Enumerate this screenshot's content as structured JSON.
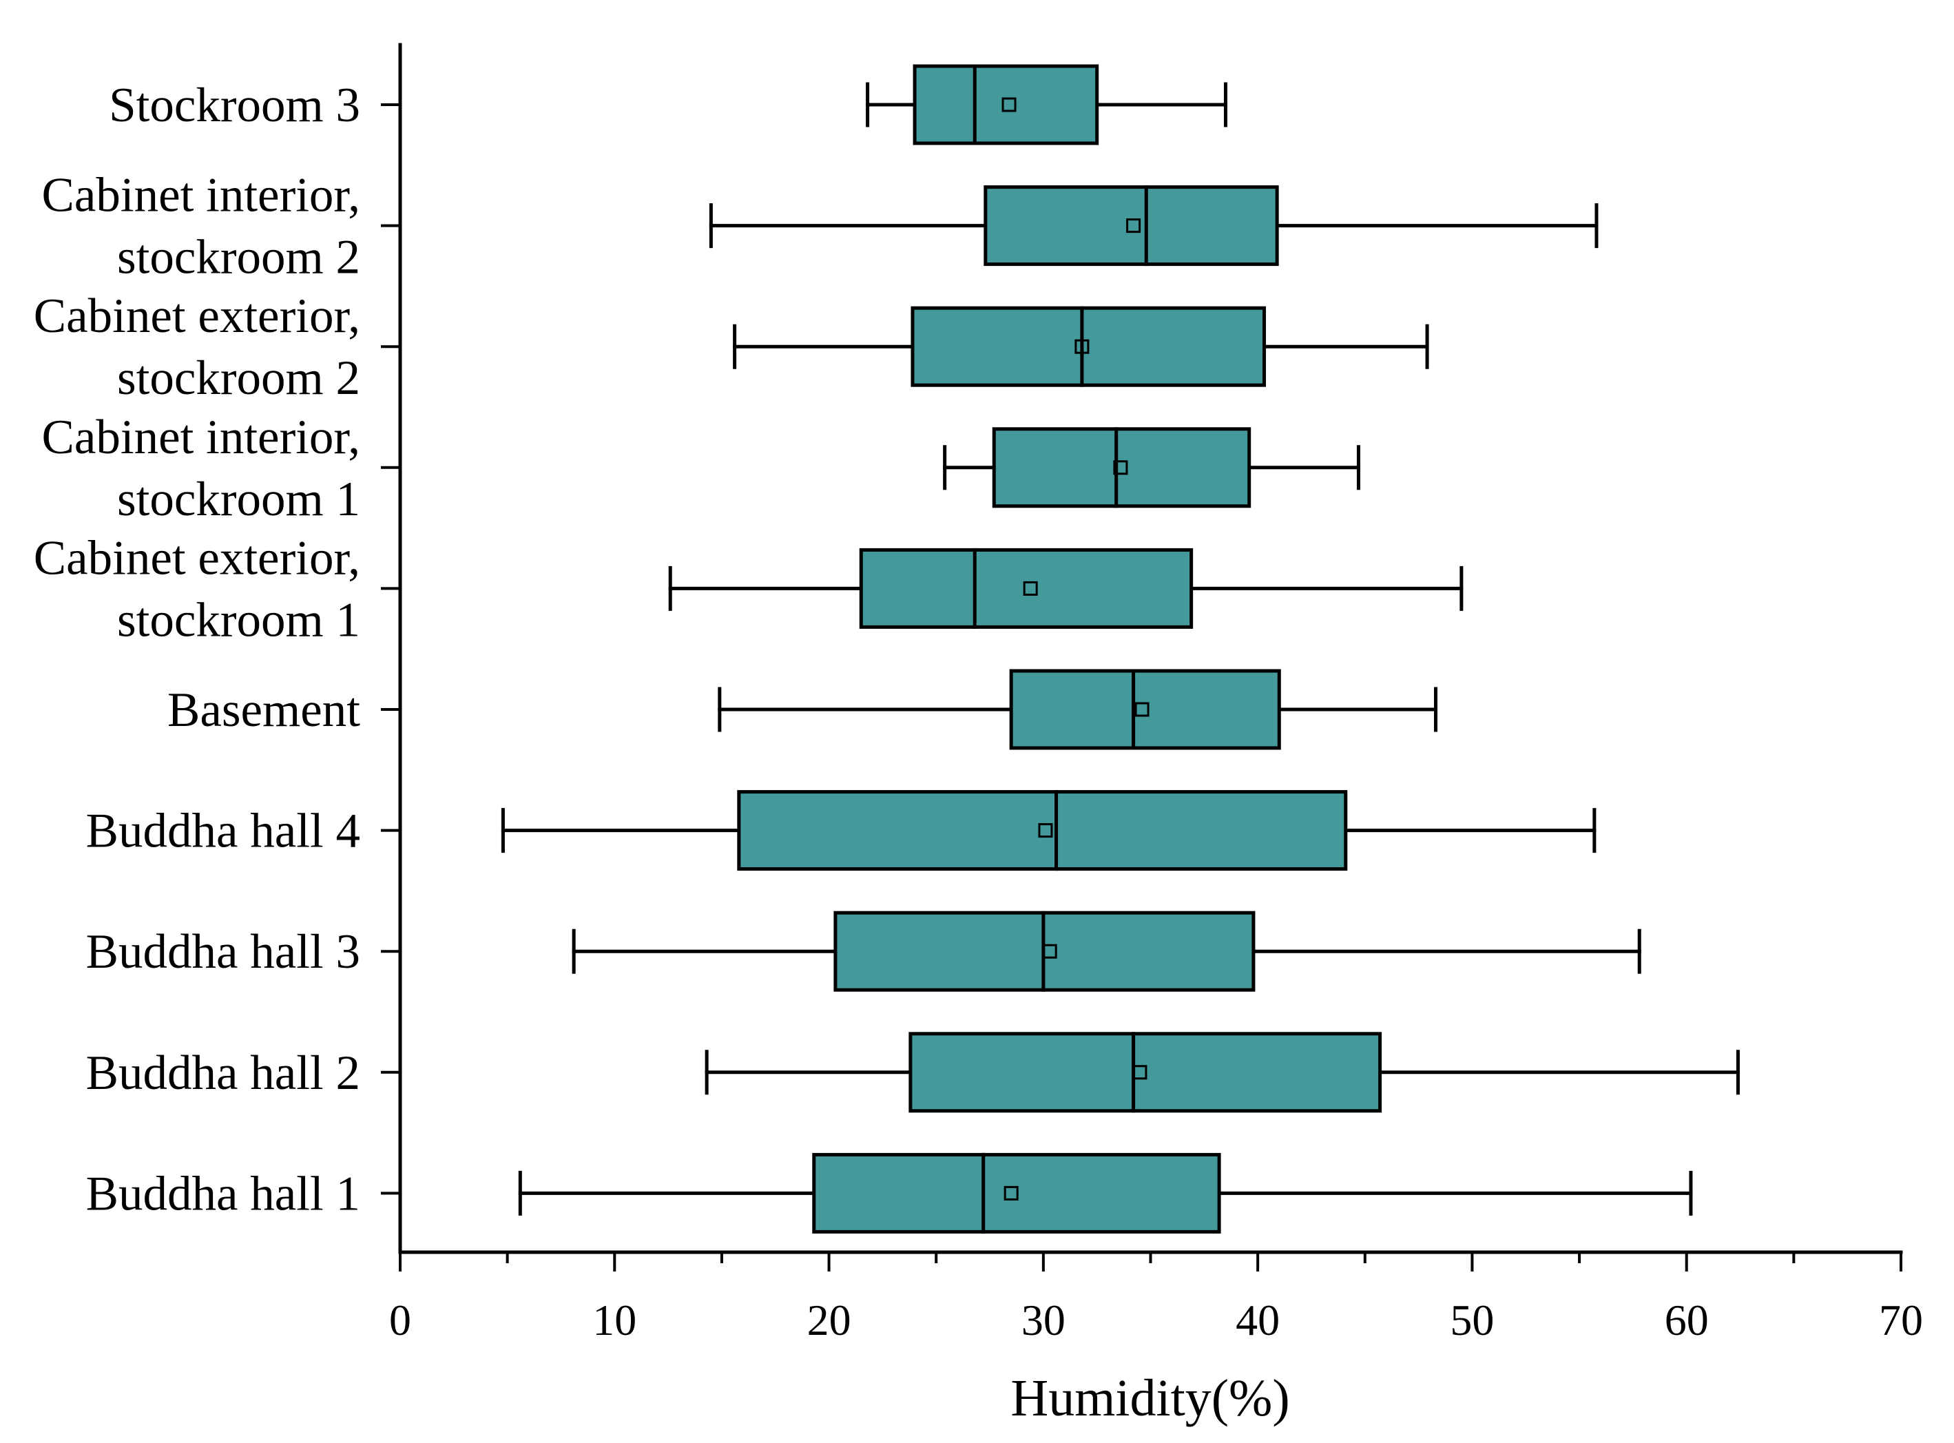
{
  "chart_data": {
    "type": "boxplot",
    "orientation": "horizontal",
    "title": "",
    "xlabel": "Humidity(%)",
    "ylabel": "",
    "xlim": [
      0,
      70
    ],
    "x_ticks": [
      0,
      10,
      20,
      30,
      40,
      50,
      60,
      70
    ],
    "grid": false,
    "legend": "none",
    "colors": {
      "box_fill": "#44999a",
      "stroke": "#000000"
    },
    "series": [
      {
        "name": "Stockroom 3",
        "lines": [
          "Stockroom 3"
        ],
        "min": 21.8,
        "q1": 24.0,
        "median": 26.8,
        "mean": 28.4,
        "q3": 32.5,
        "max": 38.5
      },
      {
        "name": "Cabinet interior, stockroom 2",
        "lines": [
          "Cabinet interior,",
          "stockroom 2"
        ],
        "min": 14.5,
        "q1": 27.3,
        "median": 34.8,
        "mean": 34.2,
        "q3": 40.9,
        "max": 55.8
      },
      {
        "name": "Cabinet exterior, stockroom 2",
        "lines": [
          "Cabinet exterior,",
          "stockroom 2"
        ],
        "min": 15.6,
        "q1": 23.9,
        "median": 31.8,
        "mean": 31.8,
        "q3": 40.3,
        "max": 47.9
      },
      {
        "name": "Cabinet interior, stockroom 1",
        "lines": [
          "Cabinet interior,",
          "stockroom 1"
        ],
        "min": 25.4,
        "q1": 27.7,
        "median": 33.4,
        "mean": 33.6,
        "q3": 39.6,
        "max": 44.7
      },
      {
        "name": "Cabinet exterior, stockroom 1",
        "lines": [
          "Cabinet exterior,",
          "stockroom 1"
        ],
        "min": 12.6,
        "q1": 21.5,
        "median": 26.8,
        "mean": 29.4,
        "q3": 36.9,
        "max": 49.5
      },
      {
        "name": "Basement",
        "lines": [
          "Basement"
        ],
        "min": 14.9,
        "q1": 28.5,
        "median": 34.2,
        "mean": 34.6,
        "q3": 41.0,
        "max": 48.3
      },
      {
        "name": "Buddha hall 4",
        "lines": [
          "Buddha hall 4"
        ],
        "min": 4.8,
        "q1": 15.8,
        "median": 30.6,
        "mean": 30.1,
        "q3": 44.1,
        "max": 55.7
      },
      {
        "name": "Buddha hall 3",
        "lines": [
          "Buddha hall 3"
        ],
        "min": 8.1,
        "q1": 20.3,
        "median": 30.0,
        "mean": 30.3,
        "q3": 39.8,
        "max": 57.8
      },
      {
        "name": "Buddha hall 2",
        "lines": [
          "Buddha hall 2"
        ],
        "min": 14.3,
        "q1": 23.8,
        "median": 34.2,
        "mean": 34.5,
        "q3": 45.7,
        "max": 62.4
      },
      {
        "name": "Buddha hall 1",
        "lines": [
          "Buddha hall 1"
        ],
        "min": 5.6,
        "q1": 19.3,
        "median": 27.2,
        "mean": 28.5,
        "q3": 38.2,
        "max": 60.2
      }
    ]
  }
}
